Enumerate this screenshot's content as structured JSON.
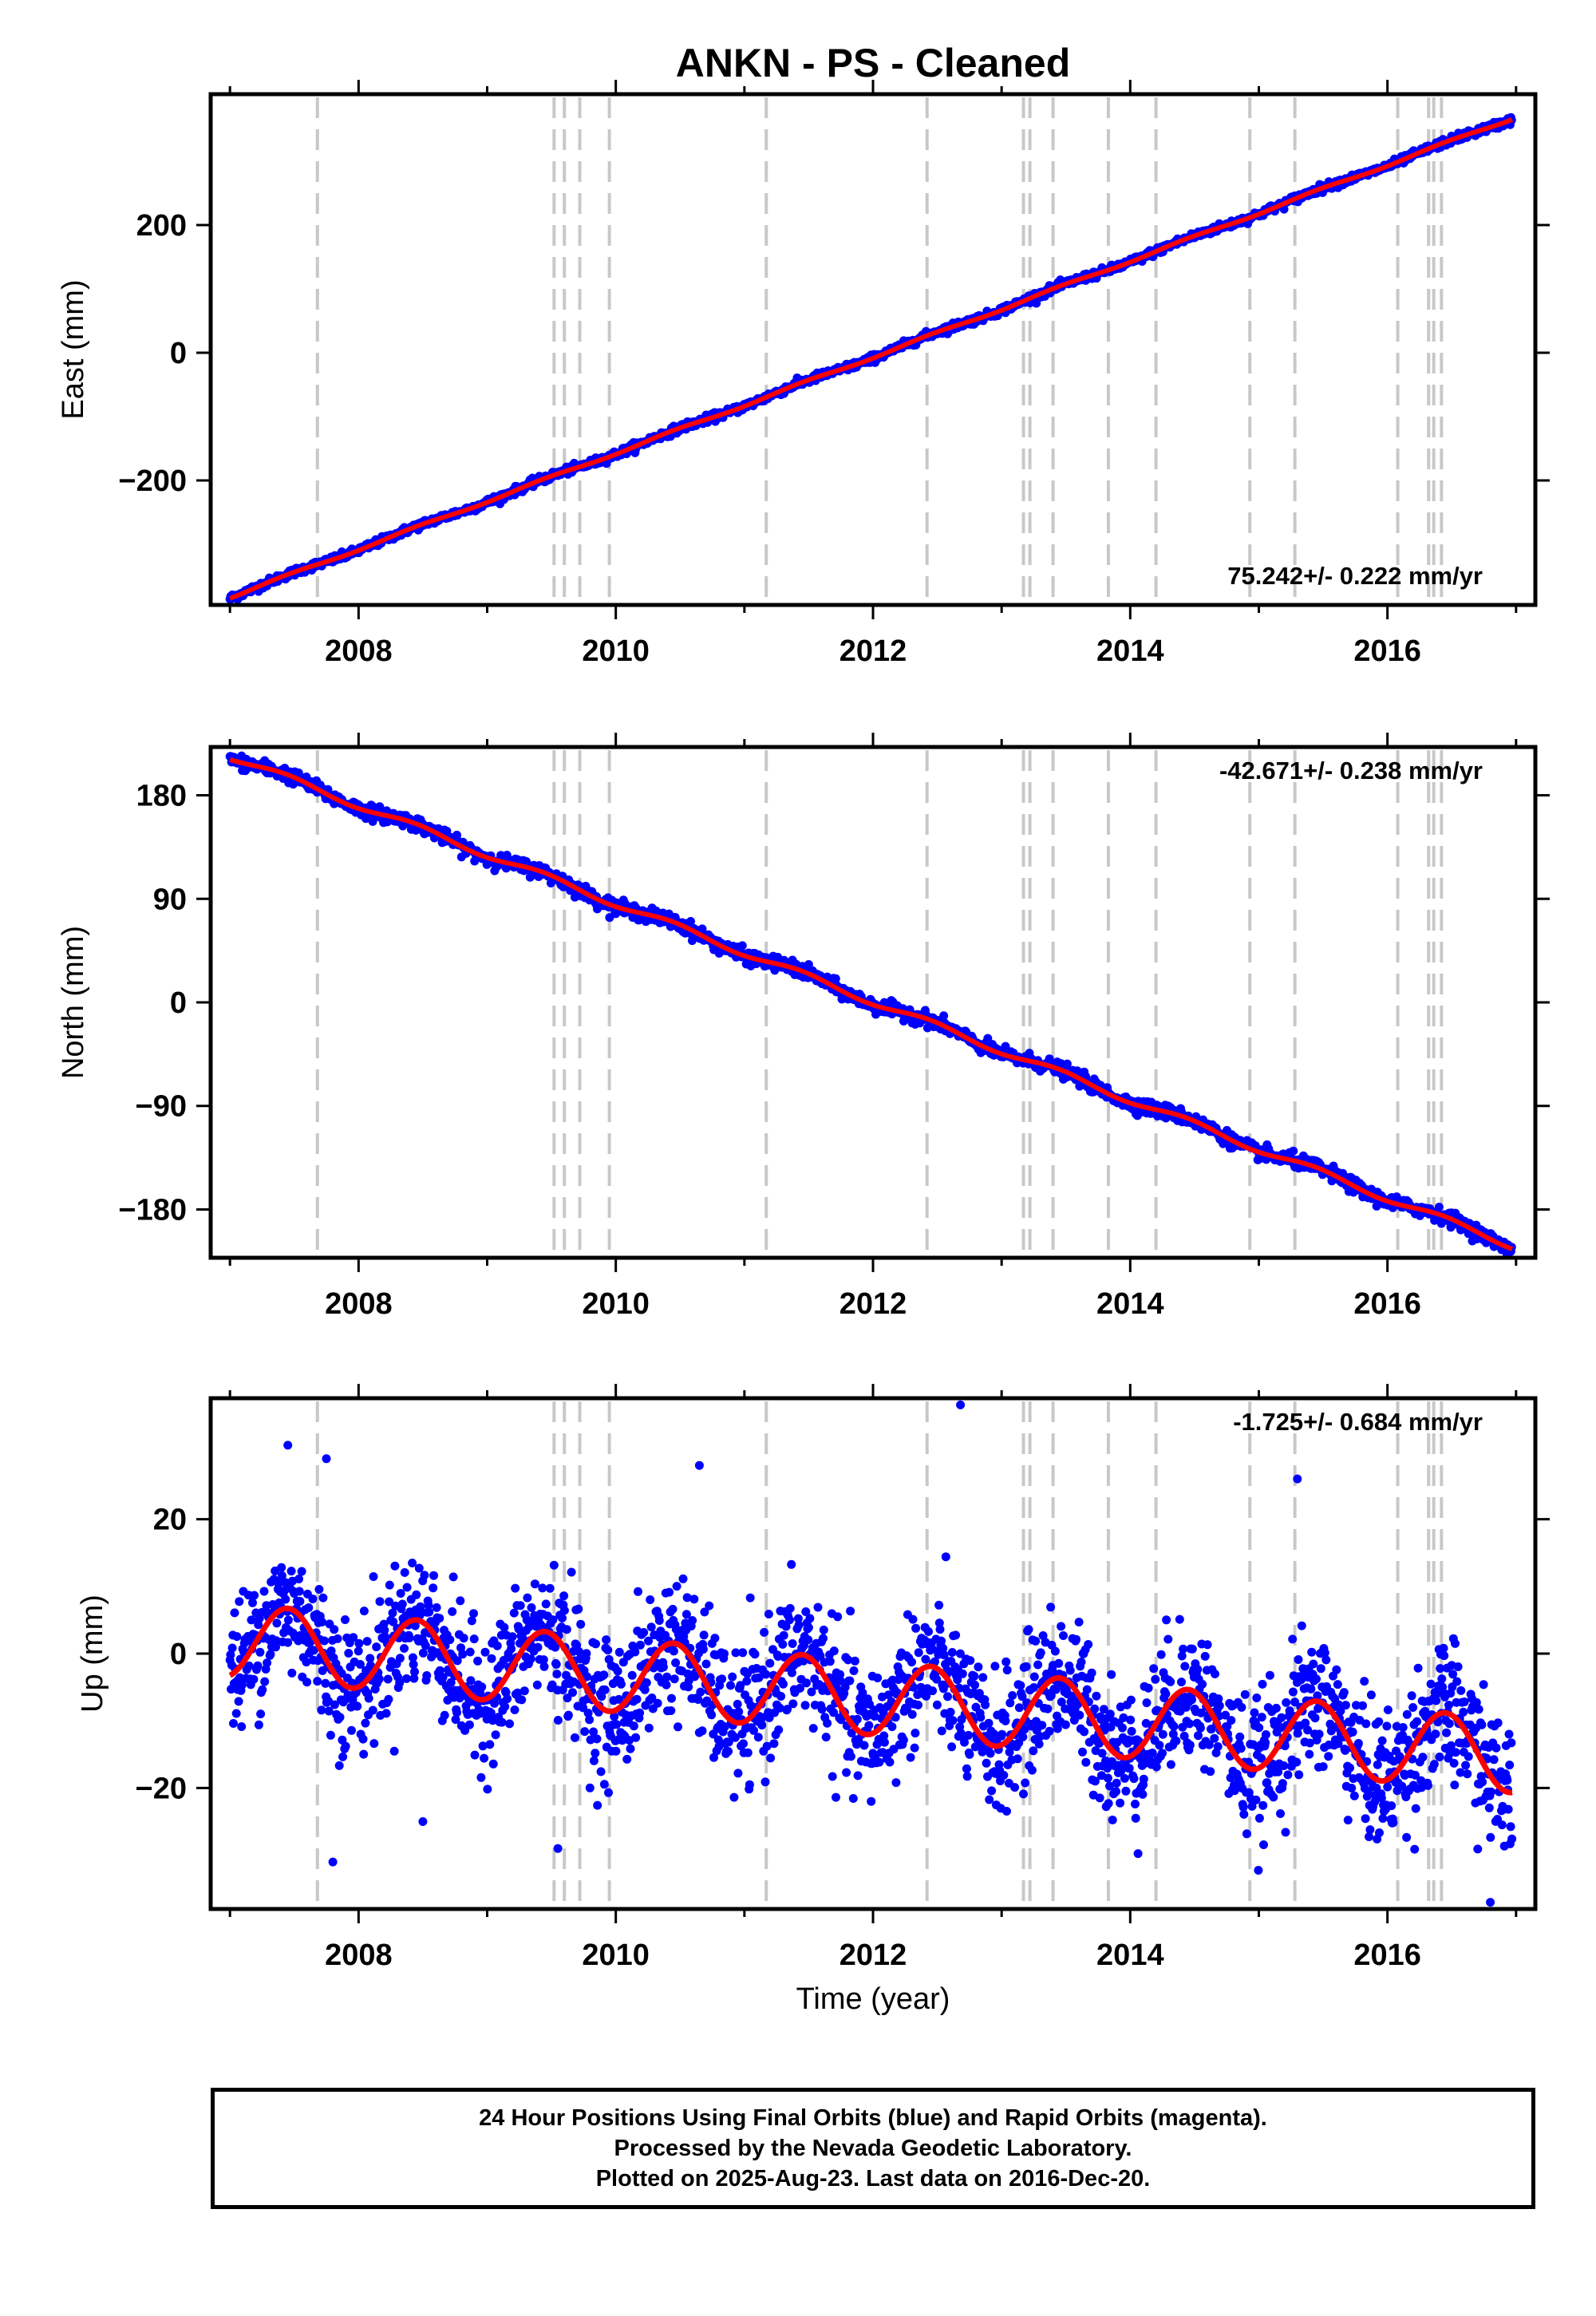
{
  "title": "ANKN  - PS - Cleaned",
  "xlabel": "Time (year)",
  "colors": {
    "data": "#0000ff",
    "model": "#ff0000",
    "steps": "#c8c8c8",
    "frame": "#000000"
  },
  "footer": [
    "24 Hour Positions Using Final Orbits (blue) and Rapid Orbits (magenta).",
    "Processed by the Nevada Geodetic Laboratory.",
    "Plotted on 2025-Aug-23. Last data on 2016-Dec-20."
  ],
  "chart_data": [
    {
      "type": "scatter",
      "panel": "east",
      "ylabel": "East (mm)",
      "rate_label": "75.242+/- 0.222 mm/yr",
      "rate_position": "bottom-right",
      "xlim": [
        2006.85,
        2017.15
      ],
      "ylim": [
        -395,
        405
      ],
      "x_ticks": [
        2008,
        2010,
        2012,
        2014,
        2016
      ],
      "y_ticks": [
        -200,
        0,
        200
      ],
      "y_tick_labels": [
        "−200",
        "0",
        "200"
      ],
      "series": [
        {
          "role": "daily positions",
          "x": [
            2007.0,
            2008.0,
            2009.0,
            2010.0,
            2011.0,
            2012.0,
            2013.0,
            2014.0,
            2015.0,
            2016.0,
            2016.97
          ],
          "y": [
            -385,
            -305,
            -235,
            -160,
            -90,
            -5,
            80,
            160,
            235,
            315,
            385
          ],
          "noise_mm": 3
        },
        {
          "role": "model fit",
          "linear_rate_mm_per_yr": 75.242,
          "y_at_2007": -383,
          "annual_amplitude_mm": 2
        }
      ]
    },
    {
      "type": "scatter",
      "panel": "north",
      "ylabel": "North (mm)",
      "rate_label": "-42.671+/- 0.238 mm/yr",
      "rate_position": "top-right",
      "xlim": [
        2006.85,
        2017.15
      ],
      "ylim": [
        -222,
        222
      ],
      "x_ticks": [
        2008,
        2010,
        2012,
        2014,
        2016
      ],
      "y_ticks": [
        -180,
        -90,
        0,
        90,
        180
      ],
      "y_tick_labels": [
        "−180",
        "−90",
        "0",
        "90",
        "180"
      ],
      "series": [
        {
          "role": "daily positions",
          "x": [
            2007.0,
            2008.0,
            2009.0,
            2010.0,
            2011.0,
            2012.0,
            2013.0,
            2014.0,
            2015.0,
            2016.0,
            2016.97
          ],
          "y": [
            214,
            175,
            135,
            90,
            45,
            0,
            -50,
            -100,
            -140,
            -180,
            -210
          ],
          "noise_mm": 3
        },
        {
          "role": "model fit",
          "linear_rate_mm_per_yr": -42.671,
          "y_at_2007": 214,
          "annual_amplitude_mm": 3
        }
      ]
    },
    {
      "type": "scatter",
      "panel": "up",
      "ylabel": "Up (mm)",
      "rate_label": "-1.725+/- 0.684 mm/yr",
      "rate_position": "top-right",
      "xlim": [
        2006.85,
        2017.15
      ],
      "ylim": [
        -38,
        38
      ],
      "x_ticks": [
        2008,
        2010,
        2012,
        2014,
        2016
      ],
      "y_ticks": [
        -20,
        0,
        20
      ],
      "y_tick_labels": [
        "−20",
        "0",
        "20"
      ],
      "series": [
        {
          "role": "daily positions",
          "noise_sd_mm": 5,
          "outliers": [
            [
              2007.45,
              31
            ],
            [
              2007.75,
              29
            ],
            [
              2008.5,
              -25
            ],
            [
              2009.55,
              -29
            ],
            [
              2010.65,
              28
            ],
            [
              2012.68,
              37
            ],
            [
              2014.95,
              -17
            ],
            [
              2016.8,
              -37
            ],
            [
              2016.9,
              -23
            ],
            [
              2007.8,
              -31
            ],
            [
              2015.3,
              26
            ]
          ]
        },
        {
          "role": "model fit",
          "linear_rate_mm_per_yr": -1.725,
          "y_at_2007": 2,
          "annual_amplitude_mm": 5.5,
          "annual_peak_year_fraction": 0.45
        }
      ]
    }
  ],
  "step_epochs": [
    2007.68,
    2009.52,
    2009.6,
    2009.72,
    2009.95,
    2011.17,
    2012.42,
    2013.17,
    2013.22,
    2013.4,
    2013.83,
    2014.2,
    2014.93,
    2015.28,
    2016.08,
    2016.32,
    2016.36,
    2016.42
  ]
}
